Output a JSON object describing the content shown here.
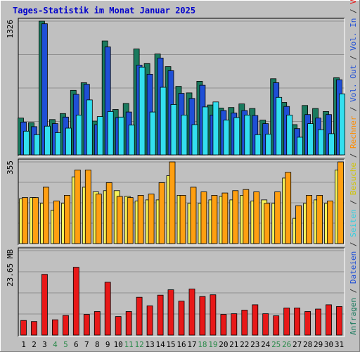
{
  "chart_data": {
    "type": "bar",
    "title": "Tages-Statistik im Monat Januar 2025",
    "categories": [
      "1",
      "2",
      "3",
      "4",
      "5",
      "6",
      "7",
      "8",
      "9",
      "10",
      "11",
      "12",
      "13",
      "14",
      "15",
      "16",
      "17",
      "18",
      "19",
      "20",
      "21",
      "22",
      "23",
      "24",
      "25",
      "26",
      "27",
      "28",
      "29",
      "30",
      "31"
    ],
    "weekend_days": [
      4,
      5,
      11,
      12,
      18,
      19,
      25,
      26
    ],
    "panels": [
      {
        "name": "requests-panel",
        "ymax_label": "1326",
        "ymax": 1326,
        "series": [
          {
            "name": "Anfragen",
            "color": "#1a7a5e",
            "values": [
              365,
              320,
              1326,
              350,
              410,
              640,
              715,
              335,
              1130,
              450,
              510,
              1050,
              905,
              1000,
              875,
              680,
              615,
              730,
              495,
              465,
              470,
              505,
              460,
              345,
              755,
              520,
              300,
              490,
              460,
              430,
              765
            ]
          },
          {
            "name": "Dateien",
            "color": "#1f4fd6",
            "values": [
              325,
              280,
              1300,
              310,
              375,
              600,
              700,
              300,
              1070,
              370,
              425,
              890,
              800,
              960,
              835,
              610,
              560,
              690,
              395,
              440,
              415,
              440,
              390,
              310,
              715,
              480,
              260,
              400,
              365,
              400,
              745
            ]
          },
          {
            "name": "Seiten",
            "color": "#33dfef",
            "values": [
              235,
              200,
              285,
              220,
              265,
              395,
              545,
              380,
              430,
              375,
              295,
              870,
              425,
              670,
              500,
              395,
              300,
              475,
              525,
              345,
              370,
              395,
              200,
              205,
              570,
              395,
              175,
              310,
              250,
              210,
              605
            ]
          }
        ]
      },
      {
        "name": "visits-panel",
        "ymax_label": "355",
        "ymax": 355,
        "series": [
          {
            "name": "Besuche",
            "color": "#f5f25a",
            "values": [
              195,
              200,
              175,
              145,
              175,
              290,
              245,
              225,
              230,
              230,
              205,
              185,
              190,
              190,
              295,
              210,
              175,
              175,
              190,
              205,
              190,
              210,
              185,
              190,
              175,
              285,
              110,
              175,
              190,
              175,
              320
            ]
          },
          {
            "name": "Rechner",
            "color": "#ff9f11",
            "values": [
              200,
              200,
              245,
              185,
              210,
              320,
              320,
              215,
              265,
              205,
              200,
              210,
              215,
              265,
              355,
              210,
              245,
              225,
              210,
              220,
              230,
              235,
              225,
              175,
              225,
              310,
              165,
              210,
              210,
              185,
              355
            ]
          }
        ]
      },
      {
        "name": "volume-panel",
        "ymax_label": "23.65 MB",
        "ymax": 23.65,
        "series": [
          {
            "name": "Volumen",
            "color": "#e81818",
            "values": [
              4.1,
              3.8,
              17.0,
              4.3,
              5.5,
              19.0,
              5.8,
              6.6,
              14.8,
              5.2,
              6.6,
              10.6,
              8.2,
              11.2,
              12.7,
              9.5,
              12.9,
              10.8,
              11.3,
              5.8,
              6.0,
              7.0,
              8.5,
              6.0,
              5.4,
              7.6,
              7.6,
              6.6,
              7.3,
              8.5,
              8.0
            ]
          }
        ]
      }
    ],
    "right_axis_labels": [
      {
        "text": "Anfragen",
        "color": "#1a7a5e"
      },
      {
        "text": " / ",
        "color": "#333333"
      },
      {
        "text": "Dateien",
        "color": "#1f4fd6"
      },
      {
        "text": " / ",
        "color": "#333333"
      },
      {
        "text": "Seiten",
        "color": "#33cfe0"
      },
      {
        "text": " / ",
        "color": "#333333"
      },
      {
        "text": "Besuche",
        "color": "#d0c400"
      },
      {
        "text": " / ",
        "color": "#333333"
      },
      {
        "text": "Rechner",
        "color": "#ff8c00"
      },
      {
        "text": " / ",
        "color": "#333333"
      },
      {
        "text": "Vol. Out",
        "color": "#1f4fd6"
      },
      {
        "text": " / ",
        "color": "#333333"
      },
      {
        "text": "Vol. In",
        "color": "#1f4fd6"
      },
      {
        "text": " / ",
        "color": "#333333"
      },
      {
        "text": "Volumen",
        "color": "#e81818"
      }
    ],
    "colors": {
      "background": "#c0c0c0",
      "frame_light": "#ffffff",
      "frame_dark": "#808080",
      "title": "#0000cc",
      "weekend_label": "#2b8a4a",
      "weekday_label": "#000000",
      "grid": "#909090"
    },
    "grid": true
  }
}
